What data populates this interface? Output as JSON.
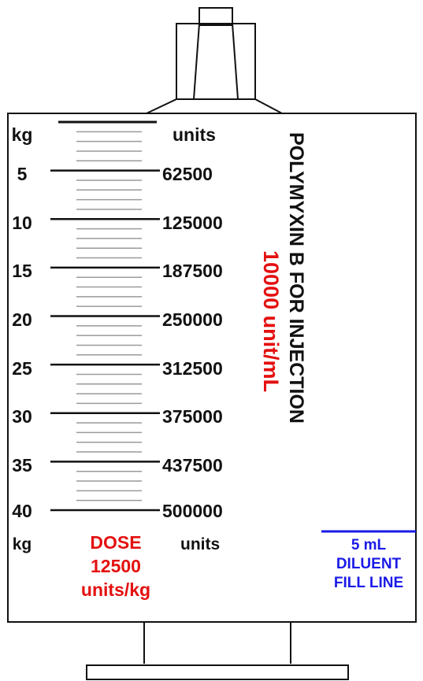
{
  "syringe": {
    "header_kg": "kg",
    "header_units": "units",
    "footer_kg": "kg",
    "footer_units": "units",
    "rows": [
      {
        "kg": "5",
        "units": "62500"
      },
      {
        "kg": "10",
        "units": "125000"
      },
      {
        "kg": "15",
        "units": "187500"
      },
      {
        "kg": "20",
        "units": "250000"
      },
      {
        "kg": "25",
        "units": "312500"
      },
      {
        "kg": "30",
        "units": "375000"
      },
      {
        "kg": "35",
        "units": "437500"
      },
      {
        "kg": "40",
        "units": "500000"
      }
    ],
    "drug_name": "POLYMYXIN B FOR INJECTION",
    "concentration": "10000 unit/mL",
    "dose": {
      "line1": "DOSE",
      "line2": "12500",
      "line3": "units/kg"
    },
    "diluent": {
      "line1": "5 mL",
      "line2": "DILUENT",
      "line3": "FILL LINE"
    }
  },
  "colors": {
    "outline": "#111111",
    "dose_text": "#e41010",
    "diluent_text": "#1a1ae8",
    "minor_ticks": "#9a9a9a"
  }
}
